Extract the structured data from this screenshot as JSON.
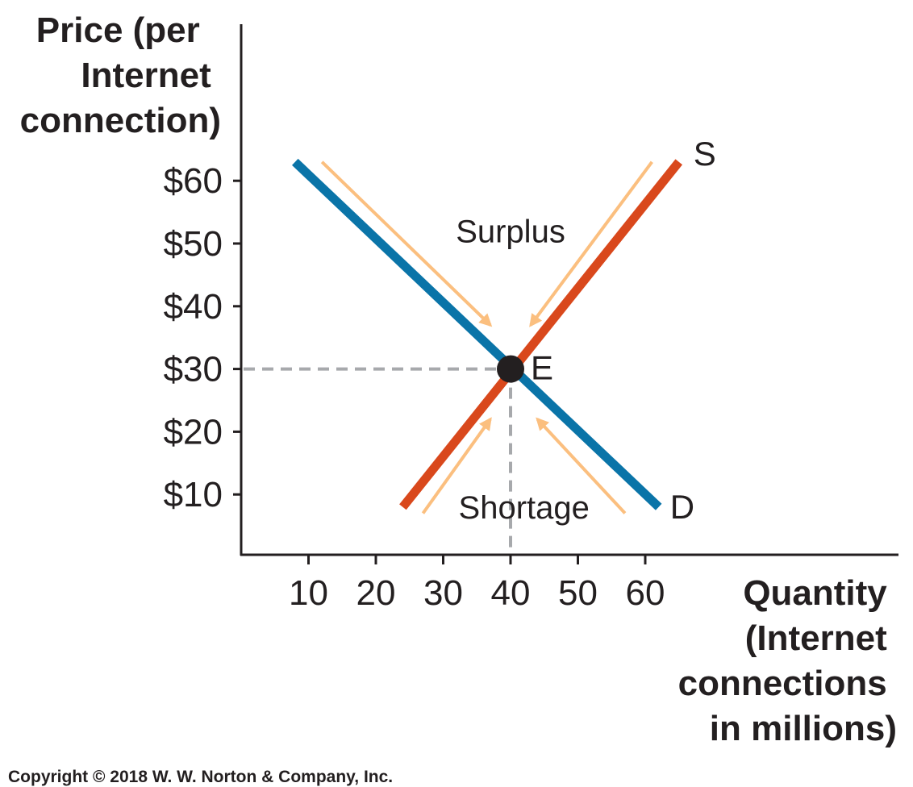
{
  "chart_data": {
    "type": "line",
    "ylabel": [
      "Price (per",
      "Internet",
      "connection)"
    ],
    "xlabel": [
      "Quantity",
      "(Internet",
      "connections",
      "in millions)"
    ],
    "y_ticks": [
      {
        "value": 60,
        "label": "$60"
      },
      {
        "value": 50,
        "label": "$50"
      },
      {
        "value": 40,
        "label": "$40"
      },
      {
        "value": 30,
        "label": "$30"
      },
      {
        "value": 20,
        "label": "$20"
      },
      {
        "value": 10,
        "label": "$10"
      }
    ],
    "x_ticks": [
      {
        "value": 10,
        "label": "10"
      },
      {
        "value": 20,
        "label": "20"
      },
      {
        "value": 30,
        "label": "30"
      },
      {
        "value": 40,
        "label": "40"
      },
      {
        "value": 50,
        "label": "50"
      },
      {
        "value": 60,
        "label": "60"
      }
    ],
    "xlim": [
      0,
      100
    ],
    "ylim": [
      0,
      72
    ],
    "series": [
      {
        "name": "D",
        "color": "#0a74a8",
        "points": [
          [
            8,
            63
          ],
          [
            62,
            8
          ]
        ]
      },
      {
        "name": "S",
        "color": "#d9481c",
        "points": [
          [
            24,
            8
          ],
          [
            65,
            63
          ]
        ]
      }
    ],
    "equilibrium": {
      "label": "E",
      "x": 40,
      "y": 30
    },
    "regions": [
      {
        "label": "Surplus",
        "x": 40,
        "y": 52
      },
      {
        "label": "Shortage",
        "x": 42,
        "y": 8
      }
    ],
    "arrow_color": "#fbbf7f",
    "arrows": [
      {
        "from": [
          12,
          63
        ],
        "to": [
          37,
          37
        ]
      },
      {
        "from": [
          61,
          63
        ],
        "to": [
          43,
          37
        ]
      },
      {
        "from": [
          27,
          7
        ],
        "to": [
          37,
          22
        ]
      },
      {
        "from": [
          57,
          7
        ],
        "to": [
          44,
          22
        ]
      }
    ]
  },
  "copyright": "Copyright © 2018 W. W. Norton & Company, Inc."
}
